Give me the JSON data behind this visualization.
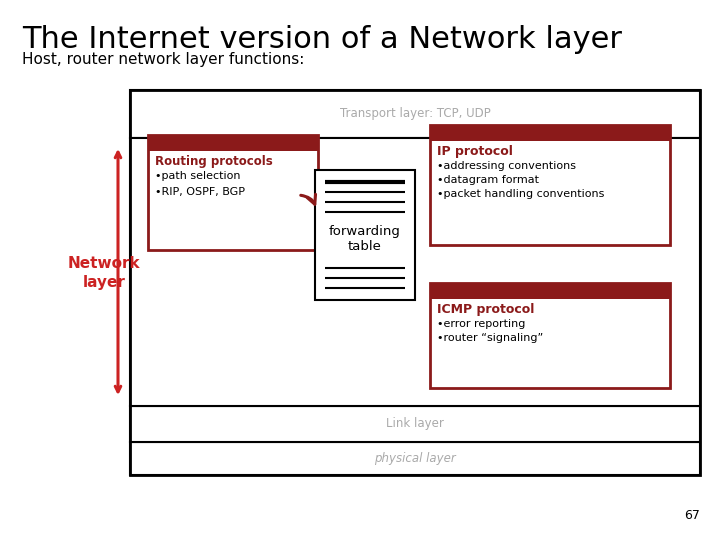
{
  "title": "The Internet version of a Network layer",
  "subtitle": "Host, router network layer functions:",
  "title_fontsize": 22,
  "subtitle_fontsize": 11,
  "bg_color": "#ffffff",
  "page_number": "67",
  "transport_label": "Transport layer: TCP, UDP",
  "link_label": "Link layer",
  "physical_label": "physical layer",
  "network_label_1": "Network",
  "network_label_2": "layer",
  "routing_title": "Routing protocols",
  "routing_bullets": [
    "•path selection",
    "•RIP, OSPF, BGP"
  ],
  "forwarding_line1": "forwarding",
  "forwarding_line2": "table",
  "ip_title": "IP protocol",
  "ip_bullets": [
    "•addressing conventions",
    "•datagram format",
    "•packet handling conventions"
  ],
  "icmp_title": "ICMP protocol",
  "icmp_bullets": [
    "•error reporting",
    "•router “signaling”"
  ],
  "dark_red": "#8B1A1A",
  "arrow_red": "#CC2222",
  "gray_text": "#aaaaaa"
}
